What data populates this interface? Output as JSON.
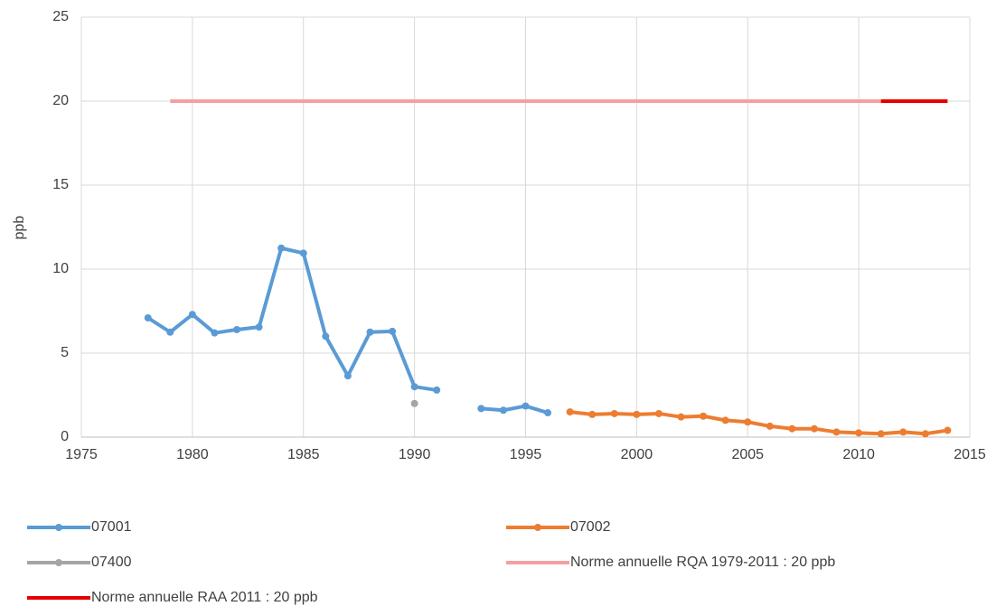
{
  "chart_data": {
    "type": "line",
    "ylabel": "ppb",
    "xlim": [
      1975,
      2015
    ],
    "xticks": [
      1975,
      1980,
      1985,
      1990,
      1995,
      2000,
      2005,
      2010,
      2015
    ],
    "ylim": [
      0,
      25
    ],
    "yticks": [
      0,
      5,
      10,
      15,
      20,
      25
    ],
    "grid": true,
    "legend": "bottom",
    "series": [
      {
        "name": "07001",
        "color": "#5b9bd5",
        "markers": true,
        "x": [
          1978,
          1979,
          1980,
          1981,
          1982,
          1983,
          1984,
          1985,
          1986,
          1987,
          1988,
          1989,
          1990,
          1991,
          1992,
          1993,
          1994,
          1995,
          1996
        ],
        "values": [
          7.1,
          6.25,
          7.3,
          6.2,
          6.4,
          6.55,
          11.25,
          10.95,
          6.0,
          3.65,
          6.25,
          6.3,
          3.0,
          2.8,
          null,
          1.7,
          1.6,
          1.85,
          1.45
        ]
      },
      {
        "name": "07002",
        "color": "#ed7d31",
        "markers": true,
        "x": [
          1997,
          1998,
          1999,
          2000,
          2001,
          2002,
          2003,
          2004,
          2005,
          2006,
          2007,
          2008,
          2009,
          2010,
          2011,
          2012,
          2013,
          2014
        ],
        "values": [
          1.5,
          1.35,
          1.4,
          1.35,
          1.4,
          1.2,
          1.25,
          1.0,
          0.9,
          0.65,
          0.5,
          0.5,
          0.3,
          0.25,
          0.2,
          0.3,
          0.2,
          0.4
        ]
      },
      {
        "name": "07400",
        "color": "#a5a5a5",
        "markers": true,
        "x": [
          1990
        ],
        "values": [
          2.0
        ]
      },
      {
        "name": "Norme annuelle RQA 1979-2011 : 20 ppb",
        "color": "#f4a0a0",
        "markers": false,
        "x": [
          1979,
          2011
        ],
        "values": [
          20,
          20
        ]
      },
      {
        "name": "Norme annuelle RAA 2011 : 20 ppb",
        "color": "#e60000",
        "markers": false,
        "x": [
          2011,
          2014
        ],
        "values": [
          20,
          20
        ]
      }
    ]
  }
}
